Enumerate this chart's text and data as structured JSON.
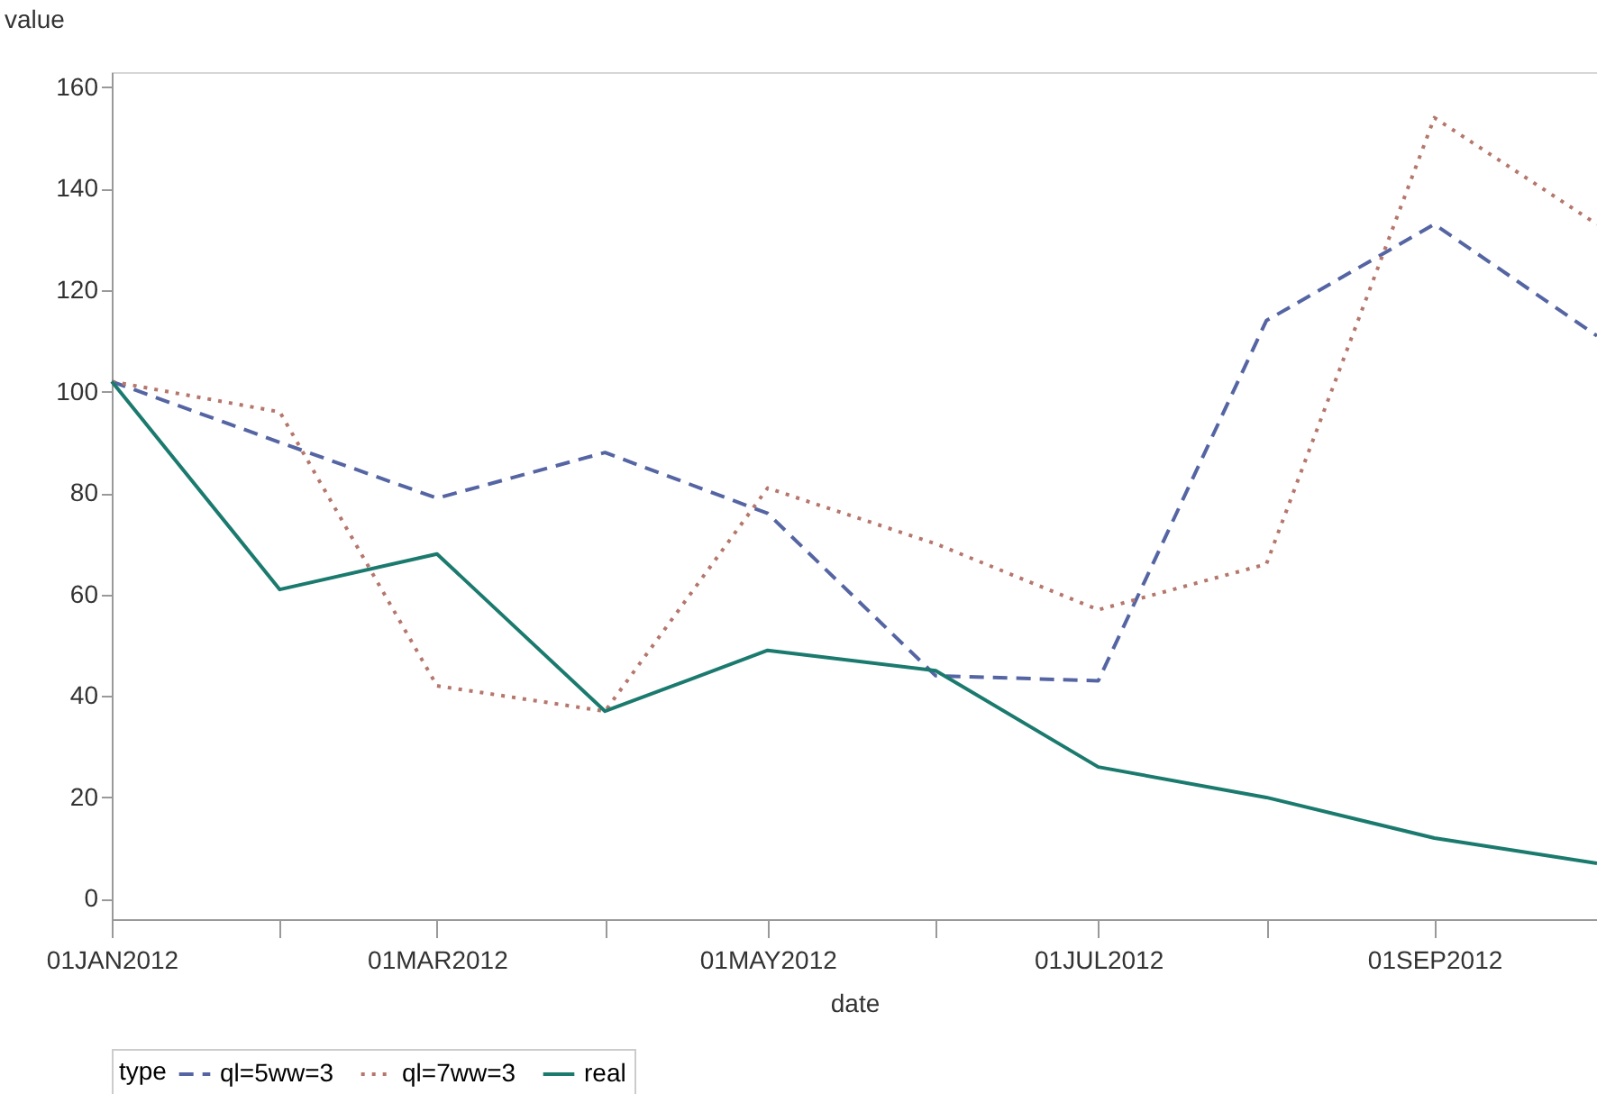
{
  "chart_data": {
    "type": "line",
    "xlabel": "date",
    "ylabel": "value",
    "legend_title": "type",
    "legend": "bottom",
    "grid": false,
    "marker": "none",
    "x": [
      "2012-01-01",
      "2012-02-01",
      "2012-03-01",
      "2012-04-01",
      "2012-05-01",
      "2012-06-01",
      "2012-07-01",
      "2012-08-01",
      "2012-09-01",
      "2012-10-01"
    ],
    "xlim": [
      "2012-01-01",
      "2012-10-01"
    ],
    "xticks": [
      {
        "value": "2012-01-01",
        "label": "01JAN2012"
      },
      {
        "value": "2012-02-01",
        "label": null
      },
      {
        "value": "2012-03-01",
        "label": "01MAR2012"
      },
      {
        "value": "2012-04-01",
        "label": null
      },
      {
        "value": "2012-05-01",
        "label": "01MAY2012"
      },
      {
        "value": "2012-06-01",
        "label": null
      },
      {
        "value": "2012-07-01",
        "label": "01JUL2012"
      },
      {
        "value": "2012-08-01",
        "label": null
      },
      {
        "value": "2012-09-01",
        "label": "01SEP2012"
      },
      {
        "value": "2012-10-01",
        "label": null
      }
    ],
    "ylim": [
      -4,
      163
    ],
    "yticks": [
      0,
      20,
      40,
      60,
      80,
      100,
      120,
      140,
      160
    ],
    "series": [
      {
        "name": "ql=5ww=3",
        "color": "#5565a3",
        "line_style": "dashed",
        "values": [
          102,
          90,
          79,
          88,
          76,
          44,
          43,
          114,
          133,
          111
        ]
      },
      {
        "name": "ql=7ww=3",
        "color": "#b5766c",
        "line_style": "dotted",
        "values": [
          102,
          96,
          42,
          37,
          81,
          70,
          57,
          66,
          154,
          133
        ]
      },
      {
        "name": "real",
        "color": "#1b7a6e",
        "line_style": "solid",
        "values": [
          102,
          61,
          68,
          37,
          49,
          45,
          26,
          20,
          12,
          7
        ]
      }
    ]
  }
}
